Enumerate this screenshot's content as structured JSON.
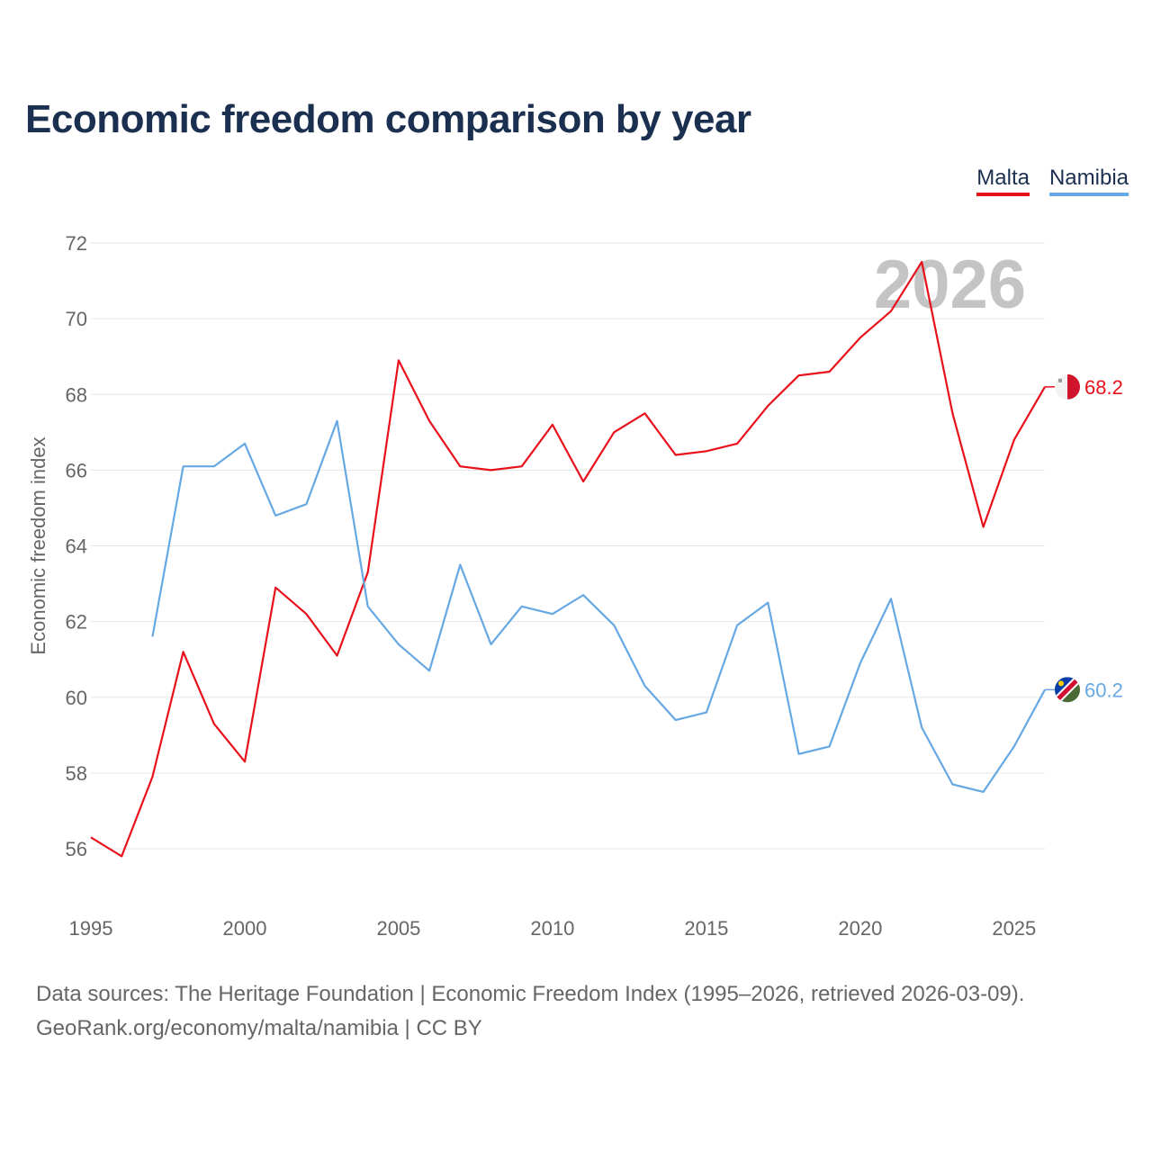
{
  "chart_data": {
    "type": "line",
    "title": "Economic freedom comparison by year",
    "ylabel": "Economic freedom index",
    "xlabel": "",
    "year_label": "2026",
    "xlim": [
      1995,
      2026
    ],
    "ylim": [
      55,
      72
    ],
    "yticks": [
      56,
      58,
      60,
      62,
      64,
      66,
      68,
      70,
      72
    ],
    "xticks": [
      1995,
      2000,
      2005,
      2010,
      2015,
      2020,
      2025
    ],
    "legend_position": "top-right",
    "grid": true,
    "series": [
      {
        "name": "Malta",
        "color": "#e8101b",
        "end_label": "68.2",
        "flag": "malta-flag",
        "points": [
          [
            1995,
            56.3
          ],
          [
            1996,
            55.8
          ],
          [
            1997,
            57.9
          ],
          [
            1998,
            61.2
          ],
          [
            1999,
            59.3
          ],
          [
            2000,
            58.3
          ],
          [
            2001,
            62.9
          ],
          [
            2002,
            62.2
          ],
          [
            2003,
            61.1
          ],
          [
            2004,
            63.3
          ],
          [
            2005,
            68.9
          ],
          [
            2006,
            67.3
          ],
          [
            2007,
            66.1
          ],
          [
            2008,
            66.0
          ],
          [
            2009,
            66.1
          ],
          [
            2010,
            67.2
          ],
          [
            2011,
            65.7
          ],
          [
            2012,
            67.0
          ],
          [
            2013,
            67.5
          ],
          [
            2014,
            66.4
          ],
          [
            2015,
            66.5
          ],
          [
            2016,
            66.7
          ],
          [
            2017,
            67.7
          ],
          [
            2018,
            68.5
          ],
          [
            2019,
            68.6
          ],
          [
            2020,
            69.5
          ],
          [
            2021,
            70.2
          ],
          [
            2022,
            71.5
          ],
          [
            2023,
            67.5
          ],
          [
            2024,
            64.5
          ],
          [
            2025,
            66.8
          ],
          [
            2026,
            68.2
          ]
        ]
      },
      {
        "name": "Namibia",
        "color": "#66a8e3",
        "end_label": "60.2",
        "flag": "namibia-flag",
        "points": [
          [
            1997,
            61.6
          ],
          [
            1998,
            66.1
          ],
          [
            1999,
            66.1
          ],
          [
            2000,
            66.7
          ],
          [
            2001,
            64.8
          ],
          [
            2002,
            65.1
          ],
          [
            2003,
            67.3
          ],
          [
            2004,
            62.4
          ],
          [
            2005,
            61.4
          ],
          [
            2006,
            60.7
          ],
          [
            2007,
            63.5
          ],
          [
            2008,
            61.4
          ],
          [
            2009,
            62.4
          ],
          [
            2010,
            62.2
          ],
          [
            2011,
            62.7
          ],
          [
            2012,
            61.9
          ],
          [
            2013,
            60.3
          ],
          [
            2014,
            59.4
          ],
          [
            2015,
            59.6
          ],
          [
            2016,
            61.9
          ],
          [
            2017,
            62.5
          ],
          [
            2018,
            58.5
          ],
          [
            2019,
            58.7
          ],
          [
            2020,
            60.9
          ],
          [
            2021,
            62.6
          ],
          [
            2022,
            59.2
          ],
          [
            2023,
            57.7
          ],
          [
            2024,
            57.5
          ],
          [
            2025,
            58.7
          ],
          [
            2026,
            60.2
          ]
        ]
      }
    ]
  },
  "footer": {
    "line1": "Data sources: The Heritage Foundation | Economic Freedom Index (1995–2026, retrieved 2026-03-09).",
    "line2": "GeoRank.org/economy/malta/namibia | CC BY"
  }
}
